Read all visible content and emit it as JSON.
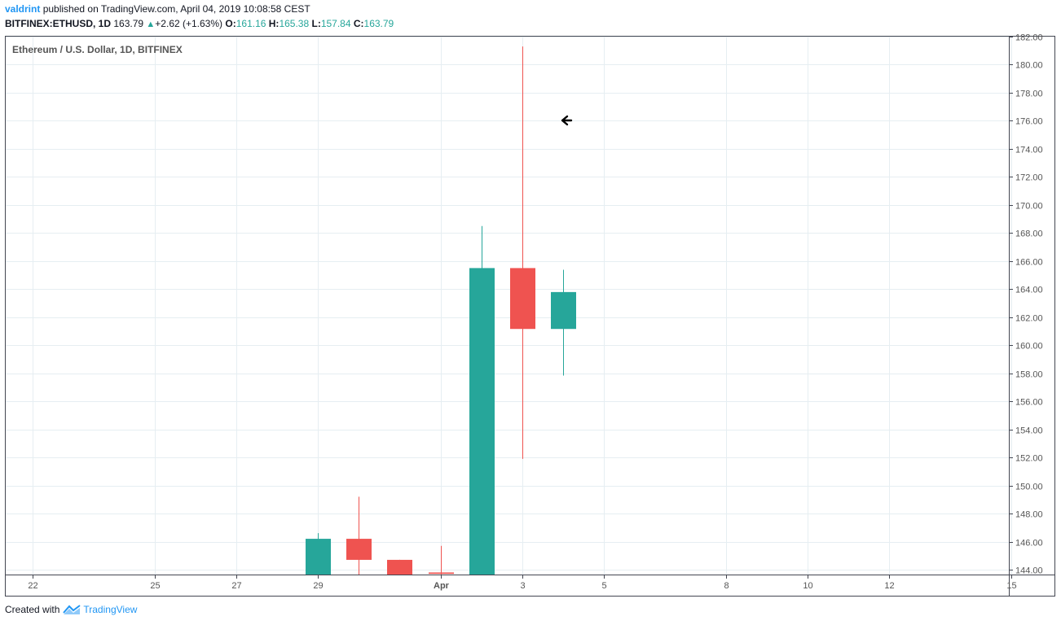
{
  "header": {
    "author": "valdrint",
    "published_text": "published on TradingView.com, April 04, 2019 10:08:58 CEST",
    "symbol": "BITFINEX:ETHUSD, 1D",
    "last": "163.79",
    "change_arrow": "▲",
    "change": "+2.62 (+1.63%)",
    "open_label": "O:",
    "open": "161.16",
    "high_label": "H:",
    "high": "165.38",
    "low_label": "L:",
    "low": "157.84",
    "close_label": "C:",
    "close": "163.79"
  },
  "footer": {
    "created_with": "Created with",
    "brand": "TradingView",
    "logo_icon": "tradingview-logo-icon"
  },
  "colors": {
    "up": "#26a69a",
    "down": "#ef5350",
    "grid": "#e6eef2",
    "axis_text": "#555555",
    "border": "#434651"
  },
  "cursor_icon": "arrow-left-icon",
  "chart_data": {
    "type": "candlestick",
    "title": "Ethereum / U.S. Dollar, 1D, BITFINEX",
    "ylim": [
      143.5,
      182.3
    ],
    "y_ticks": [
      "144.00",
      "146.00",
      "148.00",
      "150.00",
      "152.00",
      "154.00",
      "156.00",
      "158.00",
      "160.00",
      "162.00",
      "164.00",
      "166.00",
      "168.00",
      "170.00",
      "172.00",
      "174.00",
      "176.00",
      "178.00",
      "180.00",
      "182.00"
    ],
    "x_ticks": [
      {
        "label": "22",
        "day": 0,
        "bold": false
      },
      {
        "label": "25",
        "day": 3,
        "bold": false
      },
      {
        "label": "27",
        "day": 5,
        "bold": false
      },
      {
        "label": "29",
        "day": 7,
        "bold": false
      },
      {
        "label": "Apr",
        "day": 10,
        "bold": true
      },
      {
        "label": "3",
        "day": 12,
        "bold": false
      },
      {
        "label": "5",
        "day": 14,
        "bold": false
      },
      {
        "label": "8",
        "day": 17,
        "bold": false
      },
      {
        "label": "10",
        "day": 19,
        "bold": false
      },
      {
        "label": "12",
        "day": 21,
        "bold": false
      },
      {
        "label": "15",
        "day": 24,
        "bold": false
      }
    ],
    "candles": [
      {
        "day": 7,
        "open": 143.0,
        "high": 146.6,
        "low": 143.0,
        "close": 146.2
      },
      {
        "day": 8,
        "open": 146.2,
        "high": 149.2,
        "low": 143.5,
        "close": 144.7
      },
      {
        "day": 9,
        "open": 144.7,
        "high": 144.7,
        "low": 143.0,
        "close": 143.0
      },
      {
        "day": 10,
        "open": 143.8,
        "high": 145.7,
        "low": 143.0,
        "close": 143.7
      },
      {
        "day": 11,
        "open": 143.0,
        "high": 168.5,
        "low": 143.0,
        "close": 165.5
      },
      {
        "day": 12,
        "open": 165.5,
        "high": 181.3,
        "low": 151.9,
        "close": 161.16
      },
      {
        "day": 13,
        "open": 161.16,
        "high": 165.38,
        "low": 157.84,
        "close": 163.79
      }
    ]
  }
}
